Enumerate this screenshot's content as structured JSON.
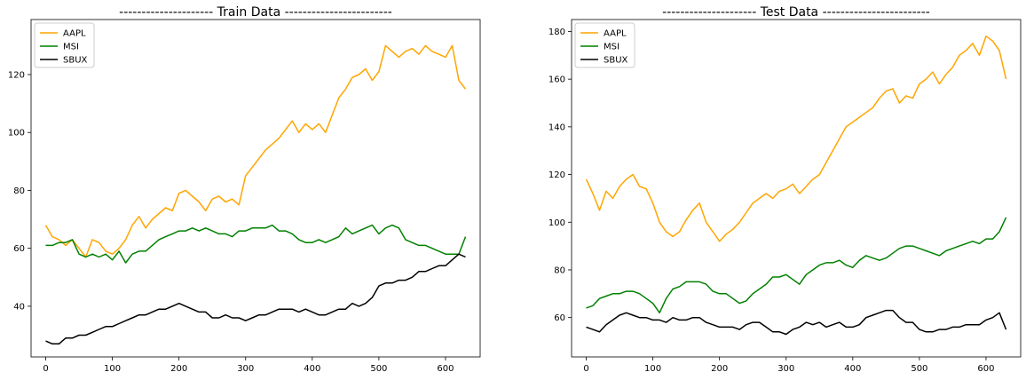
{
  "chart_data": [
    {
      "type": "line",
      "title": "--------------------- Train Data ------------------------",
      "xlabel": "",
      "ylabel": "",
      "xlim": [
        -22,
        652
      ],
      "ylim": [
        22.5,
        139
      ],
      "xticks": [
        0,
        100,
        200,
        300,
        400,
        500,
        600
      ],
      "yticks": [
        40,
        60,
        80,
        100,
        120
      ],
      "grid": false,
      "legend": "top-left",
      "series": [
        {
          "name": "AAPL",
          "color": "#ffa500",
          "x": [
            0,
            10,
            20,
            30,
            40,
            50,
            60,
            70,
            80,
            90,
            100,
            110,
            120,
            130,
            140,
            150,
            160,
            170,
            180,
            190,
            200,
            210,
            220,
            230,
            240,
            250,
            260,
            270,
            280,
            290,
            300,
            310,
            320,
            330,
            340,
            350,
            360,
            370,
            380,
            390,
            400,
            410,
            420,
            430,
            440,
            450,
            460,
            470,
            480,
            490,
            500,
            510,
            520,
            530,
            540,
            550,
            560,
            570,
            580,
            590,
            600,
            610,
            620,
            630
          ],
          "values": [
            68,
            64,
            63,
            61,
            63,
            60,
            57,
            63,
            62,
            59,
            58,
            60,
            63,
            68,
            71,
            67,
            70,
            72,
            74,
            73,
            79,
            80,
            78,
            76,
            73,
            77,
            78,
            76,
            77,
            75,
            85,
            88,
            91,
            94,
            96,
            98,
            101,
            104,
            100,
            103,
            101,
            103,
            100,
            106,
            112,
            115,
            119,
            120,
            122,
            118,
            121,
            130,
            128,
            126,
            128,
            129,
            127,
            130,
            128,
            127,
            126,
            130,
            118,
            115
          ]
        },
        {
          "name": "MSI",
          "color": "#008000",
          "x": [
            0,
            10,
            20,
            30,
            40,
            50,
            60,
            70,
            80,
            90,
            100,
            110,
            120,
            130,
            140,
            150,
            160,
            170,
            180,
            190,
            200,
            210,
            220,
            230,
            240,
            250,
            260,
            270,
            280,
            290,
            300,
            310,
            320,
            330,
            340,
            350,
            360,
            370,
            380,
            390,
            400,
            410,
            420,
            430,
            440,
            450,
            460,
            470,
            480,
            490,
            500,
            510,
            520,
            530,
            540,
            550,
            560,
            570,
            580,
            590,
            600,
            610,
            620,
            630
          ],
          "values": [
            61,
            61,
            62,
            62,
            63,
            58,
            57,
            58,
            57,
            58,
            56,
            59,
            55,
            58,
            59,
            59,
            61,
            63,
            64,
            65,
            66,
            66,
            67,
            66,
            67,
            66,
            65,
            65,
            64,
            66,
            66,
            67,
            67,
            67,
            68,
            66,
            66,
            65,
            63,
            62,
            62,
            63,
            62,
            63,
            64,
            67,
            65,
            66,
            67,
            68,
            65,
            67,
            68,
            67,
            63,
            62,
            61,
            61,
            60,
            59,
            58,
            58,
            58,
            64
          ]
        },
        {
          "name": "SBUX",
          "color": "#000000",
          "x": [
            0,
            10,
            20,
            30,
            40,
            50,
            60,
            70,
            80,
            90,
            100,
            110,
            120,
            130,
            140,
            150,
            160,
            170,
            180,
            190,
            200,
            210,
            220,
            230,
            240,
            250,
            260,
            270,
            280,
            290,
            300,
            310,
            320,
            330,
            340,
            350,
            360,
            370,
            380,
            390,
            400,
            410,
            420,
            430,
            440,
            450,
            460,
            470,
            480,
            490,
            500,
            510,
            520,
            530,
            540,
            550,
            560,
            570,
            580,
            590,
            600,
            610,
            620,
            630
          ],
          "values": [
            28,
            27,
            27,
            29,
            29,
            30,
            30,
            31,
            32,
            33,
            33,
            34,
            35,
            36,
            37,
            37,
            38,
            39,
            39,
            40,
            41,
            40,
            39,
            38,
            38,
            36,
            36,
            37,
            36,
            36,
            35,
            36,
            37,
            37,
            38,
            39,
            39,
            39,
            38,
            39,
            38,
            37,
            37,
            38,
            39,
            39,
            41,
            40,
            41,
            43,
            47,
            48,
            48,
            49,
            49,
            50,
            52,
            52,
            53,
            54,
            54,
            56,
            58,
            57
          ]
        }
      ]
    },
    {
      "type": "line",
      "title": "--------------------- Test Data ------------------------",
      "xlabel": "",
      "ylabel": "",
      "xlim": [
        -22,
        652
      ],
      "ylim": [
        43.5,
        185
      ],
      "xticks": [
        0,
        100,
        200,
        300,
        400,
        500,
        600
      ],
      "yticks": [
        60,
        80,
        100,
        120,
        140,
        160,
        180
      ],
      "grid": false,
      "legend": "top-left",
      "series": [
        {
          "name": "AAPL",
          "color": "#ffa500",
          "x": [
            0,
            10,
            20,
            30,
            40,
            50,
            60,
            70,
            80,
            90,
            100,
            110,
            120,
            130,
            140,
            150,
            160,
            170,
            180,
            190,
            200,
            210,
            220,
            230,
            240,
            250,
            260,
            270,
            280,
            290,
            300,
            310,
            320,
            330,
            340,
            350,
            360,
            370,
            380,
            390,
            400,
            410,
            420,
            430,
            440,
            450,
            460,
            470,
            480,
            490,
            500,
            510,
            520,
            530,
            540,
            550,
            560,
            570,
            580,
            590,
            600,
            610,
            620,
            630
          ],
          "values": [
            118,
            112,
            105,
            113,
            110,
            115,
            118,
            120,
            115,
            114,
            108,
            100,
            96,
            94,
            96,
            101,
            105,
            108,
            100,
            96,
            92,
            95,
            97,
            100,
            104,
            108,
            110,
            112,
            110,
            113,
            114,
            116,
            112,
            115,
            118,
            120,
            125,
            130,
            135,
            140,
            142,
            144,
            146,
            148,
            152,
            155,
            156,
            150,
            153,
            152,
            158,
            160,
            163,
            158,
            162,
            165,
            170,
            172,
            175,
            170,
            178,
            176,
            172,
            160
          ]
        },
        {
          "name": "MSI",
          "color": "#008000",
          "x": [
            0,
            10,
            20,
            30,
            40,
            50,
            60,
            70,
            80,
            90,
            100,
            110,
            120,
            130,
            140,
            150,
            160,
            170,
            180,
            190,
            200,
            210,
            220,
            230,
            240,
            250,
            260,
            270,
            280,
            290,
            300,
            310,
            320,
            330,
            340,
            350,
            360,
            370,
            380,
            390,
            400,
            410,
            420,
            430,
            440,
            450,
            460,
            470,
            480,
            490,
            500,
            510,
            520,
            530,
            540,
            550,
            560,
            570,
            580,
            590,
            600,
            610,
            620,
            630
          ],
          "values": [
            64,
            65,
            68,
            69,
            70,
            70,
            71,
            71,
            70,
            68,
            66,
            62,
            68,
            72,
            73,
            75,
            75,
            75,
            74,
            71,
            70,
            70,
            68,
            66,
            67,
            70,
            72,
            74,
            77,
            77,
            78,
            76,
            74,
            78,
            80,
            82,
            83,
            83,
            84,
            82,
            81,
            84,
            86,
            85,
            84,
            85,
            87,
            89,
            90,
            90,
            89,
            88,
            87,
            86,
            88,
            89,
            90,
            91,
            92,
            91,
            93,
            93,
            96,
            102
          ]
        },
        {
          "name": "SBUX",
          "color": "#000000",
          "x": [
            0,
            10,
            20,
            30,
            40,
            50,
            60,
            70,
            80,
            90,
            100,
            110,
            120,
            130,
            140,
            150,
            160,
            170,
            180,
            190,
            200,
            210,
            220,
            230,
            240,
            250,
            260,
            270,
            280,
            290,
            300,
            310,
            320,
            330,
            340,
            350,
            360,
            370,
            380,
            390,
            400,
            410,
            420,
            430,
            440,
            450,
            460,
            470,
            480,
            490,
            500,
            510,
            520,
            530,
            540,
            550,
            560,
            570,
            580,
            590,
            600,
            610,
            620,
            630
          ],
          "values": [
            56,
            55,
            54,
            57,
            59,
            61,
            62,
            61,
            60,
            60,
            59,
            59,
            58,
            60,
            59,
            59,
            60,
            60,
            58,
            57,
            56,
            56,
            56,
            55,
            57,
            58,
            58,
            56,
            54,
            54,
            53,
            55,
            56,
            58,
            57,
            58,
            56,
            57,
            58,
            56,
            56,
            57,
            60,
            61,
            62,
            63,
            63,
            60,
            58,
            58,
            55,
            54,
            54,
            55,
            55,
            56,
            56,
            57,
            57,
            57,
            59,
            60,
            62,
            55
          ]
        }
      ]
    }
  ]
}
